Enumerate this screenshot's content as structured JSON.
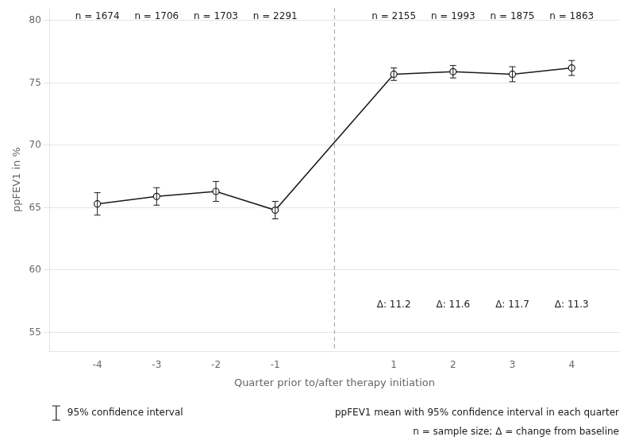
{
  "chart_data": {
    "type": "line",
    "x": [
      -4,
      -3,
      -2,
      -1,
      1,
      2,
      3,
      4
    ],
    "values": [
      65.3,
      65.9,
      66.3,
      64.8,
      75.7,
      75.9,
      75.7,
      76.2
    ],
    "err_low": [
      0.9,
      0.7,
      0.8,
      0.7,
      0.5,
      0.5,
      0.6,
      0.6
    ],
    "err_high": [
      0.9,
      0.7,
      0.8,
      0.7,
      0.5,
      0.5,
      0.6,
      0.6
    ],
    "color": "#1a1a1a",
    "marker": "circle",
    "xlabel": "Quarter prior to/after therapy initiation",
    "ylabel": "ppFEV1 in %",
    "xlim": [
      -4.8,
      4.8
    ],
    "xticks": [
      -4,
      -3,
      -2,
      -1,
      1,
      2,
      3,
      4
    ],
    "ylim": [
      53.5,
      81
    ],
    "yticks": [
      55,
      60,
      65,
      70,
      75,
      80
    ],
    "grid": "y",
    "vertical_line_x": 0,
    "annotations": [
      {
        "text": "n = 1674",
        "x": -4,
        "y": 80.3
      },
      {
        "text": "n = 1706",
        "x": -3,
        "y": 80.3
      },
      {
        "text": "n = 1703",
        "x": -2,
        "y": 80.3
      },
      {
        "text": "n = 2291",
        "x": -1,
        "y": 80.3
      },
      {
        "text": "n = 2155",
        "x": 1,
        "y": 80.3
      },
      {
        "text": "n = 1993",
        "x": 2,
        "y": 80.3
      },
      {
        "text": "n = 1875",
        "x": 3,
        "y": 80.3
      },
      {
        "text": "n = 1863",
        "x": 4,
        "y": 80.3
      },
      {
        "text": "Δ: 11.2",
        "x": 1,
        "y": 57.2
      },
      {
        "text": "Δ: 11.6",
        "x": 2,
        "y": 57.2
      },
      {
        "text": "Δ: 11.7",
        "x": 3,
        "y": 57.2
      },
      {
        "text": "Δ: 11.3",
        "x": 4,
        "y": 57.2
      }
    ],
    "legend": "bottom",
    "error_bar_label": "95% confidence interval",
    "footnotes": [
      "ppFEV1 mean with 95% confidence interval in each quarter",
      "n = sample size; Δ = change from baseline"
    ]
  }
}
